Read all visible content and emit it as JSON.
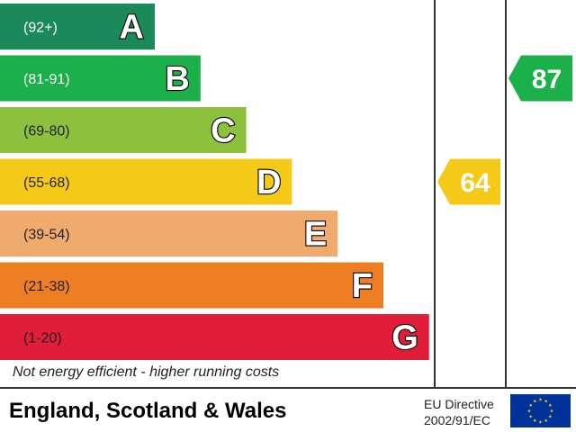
{
  "chart_data": {
    "type": "bar",
    "bands": [
      {
        "letter": "A",
        "range": "(92+)",
        "color": "#1a8a5a",
        "range_color": "#ffffff"
      },
      {
        "letter": "B",
        "range": "(81-91)",
        "color": "#1cb04b",
        "range_color": "#ffffff"
      },
      {
        "letter": "C",
        "range": "(69-80)",
        "color": "#8dc13d",
        "range_color": "#222222"
      },
      {
        "letter": "D",
        "range": "(55-68)",
        "color": "#f5c918",
        "range_color": "#222222"
      },
      {
        "letter": "E",
        "range": "(39-54)",
        "color": "#f1aa6d",
        "range_color": "#222222"
      },
      {
        "letter": "F",
        "range": "(21-38)",
        "color": "#ed7e24",
        "range_color": "#222222"
      },
      {
        "letter": "G",
        "range": "(1-20)",
        "color": "#e21d3a",
        "range_color": "#222222"
      }
    ],
    "current": {
      "value": 64,
      "band": "D",
      "color": "#f5c918"
    },
    "potential": {
      "value": 87,
      "band": "B",
      "color": "#1cb04b"
    }
  },
  "footnote": "Not energy efficient - higher running costs",
  "footer": {
    "title": "England, Scotland & Wales",
    "directive_line1": "EU Directive",
    "directive_line2": "2002/91/EC"
  },
  "flag": {
    "background": "#003399",
    "stars": "#ffcc00"
  }
}
